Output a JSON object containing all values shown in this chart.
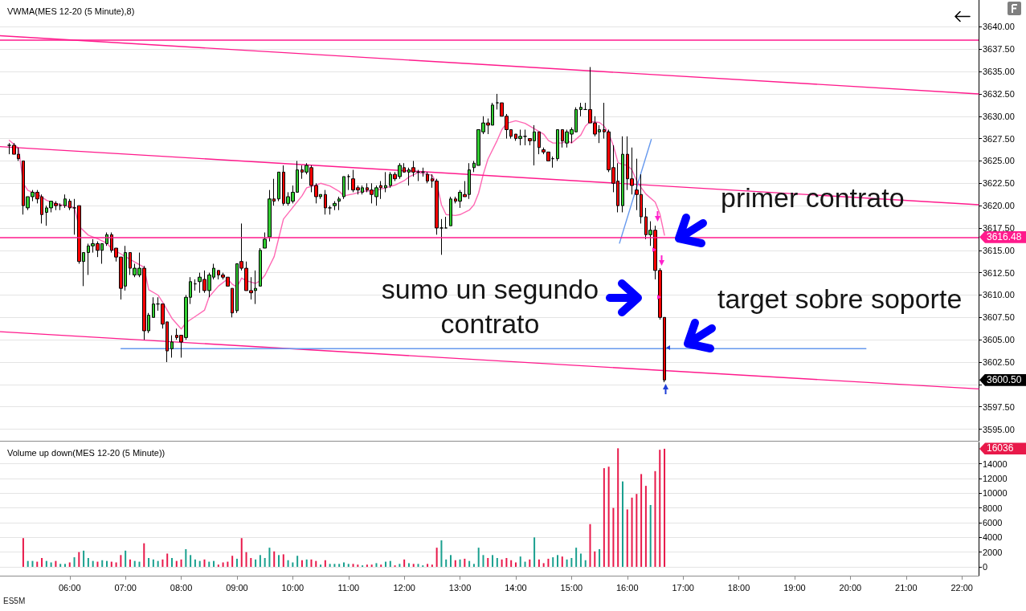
{
  "chart_data": [
    {
      "type": "candlestick",
      "title": "VWMA(MES 12-20 (5 Minute),8)",
      "series": [
        {
          "type": "candlestick",
          "x": [
            4.9167,
            5,
            5.0833,
            5.1667,
            5.25,
            5.3333,
            5.4167,
            5.5,
            5.5833,
            5.6667,
            5.75,
            5.8333,
            5.9167,
            6,
            6.0833,
            6.1667,
            6.25,
            6.3333,
            6.4167,
            6.5,
            6.5833,
            6.6667,
            6.75,
            6.8333,
            6.9167,
            7,
            7.0833,
            7.1667,
            7.25,
            7.3333,
            7.4167,
            7.5,
            7.5833,
            7.6667,
            7.75,
            7.8333,
            7.9167,
            8,
            8.0833,
            8.1667,
            8.25,
            8.3333,
            8.4167,
            8.5,
            8.5833,
            8.6667,
            8.75,
            8.8333,
            8.9167,
            9,
            9.0833,
            9.1667,
            9.25,
            9.3333,
            9.4167,
            9.5,
            9.5833,
            9.6667,
            9.75,
            9.8333,
            9.9167,
            10,
            10.0833,
            10.1667,
            10.25,
            10.3333,
            10.4167,
            10.5,
            10.5833,
            10.6667,
            10.75,
            10.8333,
            10.9167,
            11,
            11.0833,
            11.1667,
            11.25,
            11.3333,
            11.4167,
            11.5,
            11.5833,
            11.6667,
            11.75,
            11.8333,
            11.9167,
            12,
            12.0833,
            12.1667,
            12.25,
            12.3333,
            12.4167,
            12.5,
            12.5833,
            12.6667,
            12.75,
            12.8333,
            12.9167,
            13,
            13.0833,
            13.1667,
            13.25,
            13.3333,
            13.4167,
            13.5,
            13.5833,
            13.6667,
            13.75,
            13.8333,
            13.9167,
            14,
            14.0833,
            14.1667,
            14.25,
            14.3333,
            14.4167,
            14.5,
            14.5833,
            14.6667,
            14.75,
            14.8333,
            14.9167,
            15,
            15.0833,
            15.1667,
            15.25,
            15.3333,
            15.4167,
            15.5,
            15.5833,
            15.6667,
            15.75,
            15.8333,
            15.9167,
            16,
            16.0833,
            16.1667,
            16.25,
            16.3333,
            16.4167,
            16.5,
            16.5833,
            16.6667
          ],
          "ohlc": [
            [
              3626.75,
              3627,
              3625.75,
              3626.75
            ],
            [
              3626.75,
              3627,
              3625.75,
              3625.75
            ],
            [
              3625.75,
              3626.5,
              3625,
              3625.25
            ],
            [
              3625,
              3625,
              3619,
              3620
            ],
            [
              3619.75,
              3621,
              3619.5,
              3621
            ],
            [
              3621,
              3621.75,
              3620.5,
              3621.5
            ],
            [
              3621.5,
              3621.75,
              3620.25,
              3620.75
            ],
            [
              3621,
              3621.25,
              3618,
              3619
            ],
            [
              3619.25,
              3620,
              3617.75,
              3619.75
            ],
            [
              3619.75,
              3620.5,
              3619.25,
              3620.5
            ],
            [
              3620.25,
              3620.5,
              3619.5,
              3620
            ],
            [
              3620,
              3620.25,
              3619.5,
              3620
            ],
            [
              3620,
              3621.25,
              3619.75,
              3620.75
            ],
            [
              3620.5,
              3620.75,
              3619.5,
              3619.75
            ],
            [
              3619.75,
              3620.75,
              3616.75,
              3619.75
            ],
            [
              3620,
              3620,
              3613.5,
              3613.75
            ],
            [
              3613.75,
              3614.75,
              3611,
              3614.75
            ],
            [
              3614.75,
              3615.75,
              3612.25,
              3615.5
            ],
            [
              3615.5,
              3616.25,
              3614.75,
              3615.75
            ],
            [
              3615.75,
              3616,
              3614.25,
              3615
            ],
            [
              3615,
              3615.75,
              3613.5,
              3615.75
            ],
            [
              3615.75,
              3617,
              3615.5,
              3616.75
            ],
            [
              3616.75,
              3617,
              3614.75,
              3615
            ],
            [
              3615.25,
              3615.25,
              3613.75,
              3614.25
            ],
            [
              3614.25,
              3614.25,
              3609.5,
              3610.75
            ],
            [
              3611,
              3615.5,
              3610.5,
              3614.75
            ],
            [
              3614.75,
              3614.75,
              3612.25,
              3613
            ],
            [
              3612.25,
              3613.5,
              3612,
              3613
            ],
            [
              3612.25,
              3614.75,
              3612,
              3613
            ],
            [
              3613,
              3613.25,
              3605,
              3606
            ],
            [
              3606,
              3608,
              3605.75,
              3607.75
            ],
            [
              3607.5,
              3609.75,
              3607.5,
              3609
            ],
            [
              3609,
              3609.75,
              3608.25,
              3609
            ],
            [
              3609,
              3609,
              3606.25,
              3606.75
            ],
            [
              3607,
              3607,
              3602.5,
              3603.75
            ],
            [
              3604,
              3605.5,
              3603,
              3604.75
            ],
            [
              3605.5,
              3606.25,
              3605,
              3605.25
            ],
            [
              3605.5,
              3605.5,
              3603,
              3604.75
            ],
            [
              3605.25,
              3610,
              3605,
              3609.75
            ],
            [
              3609.75,
              3612,
              3609,
              3611.5
            ],
            [
              3611.25,
              3611.75,
              3610.5,
              3611.25
            ],
            [
              3611.5,
              3612.5,
              3610.25,
              3612
            ],
            [
              3611.75,
              3612.75,
              3610.25,
              3610.5
            ],
            [
              3610.5,
              3612.5,
              3609.75,
              3612.25
            ],
            [
              3612,
              3613.5,
              3611.75,
              3613
            ],
            [
              3612.75,
              3612.75,
              3611.75,
              3612.25
            ],
            [
              3612.25,
              3612.5,
              3611.75,
              3612
            ],
            [
              3612,
              3612,
              3611,
              3611
            ],
            [
              3610.75,
              3610.75,
              3607.5,
              3608
            ],
            [
              3608.25,
              3613.5,
              3608,
              3613.5
            ],
            [
              3613.75,
              3618,
              3612.75,
              3613
            ],
            [
              3613,
              3613.75,
              3610.5,
              3610.5
            ],
            [
              3610.5,
              3612,
              3609.5,
              3610.25
            ],
            [
              3610.5,
              3612.75,
              3609,
              3610.75
            ],
            [
              3611,
              3615.25,
              3611,
              3615
            ],
            [
              3615.25,
              3617,
              3615.25,
              3616.25
            ],
            [
              3616.5,
              3621.75,
              3616,
              3620.75
            ],
            [
              3620.75,
              3623,
              3620,
              3620.5
            ],
            [
              3620.75,
              3623.75,
              3620.5,
              3623.75
            ],
            [
              3623.75,
              3624.5,
              3620,
              3620.25
            ],
            [
              3620.25,
              3621.5,
              3620,
              3621
            ],
            [
              3620.5,
              3622.25,
              3620.25,
              3621.5
            ],
            [
              3621.5,
              3625,
              3621.5,
              3624
            ],
            [
              3624,
              3624.5,
              3623,
              3623.75
            ],
            [
              3623.75,
              3624.75,
              3623.5,
              3624.5
            ],
            [
              3624.25,
              3624.5,
              3621.5,
              3622.25
            ],
            [
              3622.25,
              3622.5,
              3620.25,
              3621
            ],
            [
              3621,
              3621.25,
              3620.75,
              3621.25
            ],
            [
              3621.25,
              3621.75,
              3619,
              3619.75
            ],
            [
              3619.75,
              3620,
              3619,
              3619.75
            ],
            [
              3620,
              3620.5,
              3619.5,
              3620.25
            ],
            [
              3620.5,
              3621,
              3619.5,
              3620.75
            ],
            [
              3621,
              3623.25,
              3620.75,
              3623.25
            ],
            [
              3623.25,
              3623.5,
              3621.75,
              3623.25
            ],
            [
              3623,
              3624,
              3621.5,
              3621.75
            ],
            [
              3622,
              3622.25,
              3621.25,
              3621.75
            ],
            [
              3621.5,
              3622.25,
              3621.25,
              3622
            ],
            [
              3622,
              3622.5,
              3621.5,
              3621.75
            ],
            [
              3621.75,
              3622.5,
              3620.25,
              3621.25
            ],
            [
              3621,
              3622.25,
              3620,
              3622
            ],
            [
              3622.25,
              3622.75,
              3620.75,
              3622
            ],
            [
              3622,
              3623.75,
              3621.5,
              3622.25
            ],
            [
              3622.25,
              3623.75,
              3622,
              3623.5
            ],
            [
              3623.5,
              3623.75,
              3622.75,
              3623
            ],
            [
              3623.25,
              3624.75,
              3623,
              3624.5
            ],
            [
              3624.25,
              3624.75,
              3623.75,
              3623.75
            ],
            [
              3623.75,
              3624.25,
              3622.25,
              3624
            ],
            [
              3624.25,
              3625,
              3623.25,
              3623.75
            ],
            [
              3623.75,
              3624,
              3622.75,
              3623.75
            ],
            [
              3623.75,
              3624.25,
              3623.25,
              3623.75
            ],
            [
              3623.5,
              3623.75,
              3622.5,
              3622.75
            ],
            [
              3623,
              3623.5,
              3622,
              3622.75
            ],
            [
              3622.75,
              3623,
              3616.75,
              3617.5
            ],
            [
              3617.5,
              3618.5,
              3614.5,
              3617.5
            ],
            [
              3617.5,
              3618.75,
              3617.5,
              3617.5
            ],
            [
              3617.75,
              3621,
              3617.75,
              3620.75
            ],
            [
              3620.75,
              3621,
              3620.25,
              3620.5
            ],
            [
              3620.5,
              3621.75,
              3619.75,
              3621.5
            ],
            [
              3621.25,
              3622.75,
              3621,
              3621
            ],
            [
              3621.25,
              3624.75,
              3620.75,
              3624
            ],
            [
              3624.25,
              3625,
              3623.75,
              3624.75
            ],
            [
              3624.5,
              3628.5,
              3624.5,
              3628.5
            ],
            [
              3628.25,
              3630,
              3628,
              3629.25
            ],
            [
              3629.25,
              3629.75,
              3628,
              3629
            ],
            [
              3629,
              3631.5,
              3629,
              3631.25
            ],
            [
              3631.5,
              3632.5,
              3630.75,
              3631.5
            ],
            [
              3631.5,
              3631.5,
              3630,
              3630
            ],
            [
              3630,
              3630.25,
              3627.5,
              3628.5
            ],
            [
              3628.5,
              3628.5,
              3627.5,
              3627.75
            ],
            [
              3628,
              3628,
              3627.25,
              3627.5
            ],
            [
              3627.5,
              3628.5,
              3626.75,
              3627.75
            ],
            [
              3627.75,
              3628.5,
              3626.75,
              3627.75
            ],
            [
              3627.5,
              3627.5,
              3626.75,
              3627.25
            ],
            [
              3627.25,
              3629,
              3624.5,
              3628.25
            ],
            [
              3628.25,
              3628.25,
              3625.75,
              3626.5
            ],
            [
              3626.25,
              3626.5,
              3625.75,
              3626
            ],
            [
              3626,
              3626,
              3625,
              3625
            ],
            [
              3625.25,
              3625.5,
              3624.25,
              3625.25
            ],
            [
              3625.25,
              3628.5,
              3625,
              3628.5
            ],
            [
              3628.5,
              3628.5,
              3626.5,
              3627.25
            ],
            [
              3627,
              3628.5,
              3626.5,
              3628.25
            ],
            [
              3628,
              3628.75,
              3627,
              3628.5
            ],
            [
              3628.25,
              3631,
              3628.25,
              3630.75
            ],
            [
              3630.75,
              3631.5,
              3630,
              3631
            ],
            [
              3630.75,
              3631.5,
              3630.75,
              3630.75
            ],
            [
              3630.75,
              3635.5,
              3629.25,
              3629.25
            ],
            [
              3629.25,
              3630,
              3627.75,
              3628
            ],
            [
              3628.25,
              3629,
              3627,
              3628.5
            ],
            [
              3628.5,
              3631.5,
              3627.5,
              3628.25
            ],
            [
              3628.25,
              3628.5,
              3623.75,
              3624
            ],
            [
              3624.25,
              3626.75,
              3621.5,
              3622.5
            ],
            [
              3622.75,
              3624.75,
              3619.25,
              3620
            ],
            [
              3620,
              3627.75,
              3619.25,
              3625.75
            ],
            [
              3625.75,
              3627.75,
              3621.75,
              3623
            ],
            [
              3623,
              3626.5,
              3621.25,
              3622.25
            ],
            [
              3621.75,
              3625.25,
              3619.5,
              3621.25
            ],
            [
              3621.25,
              3623.5,
              3618,
              3618.75
            ],
            [
              3618.75,
              3619.75,
              3616.25,
              3616.75
            ],
            [
              3616.75,
              3618.25,
              3615.5,
              3617.25
            ],
            [
              3617.25,
              3617.75,
              3611.75,
              3612.75
            ],
            [
              3612.75,
              3613,
              3607.25,
              3607.5
            ],
            [
              3607.5,
              3607.5,
              3600.25,
              3600.5
            ]
          ],
          "colors": [
            "#000000",
            "#ff0000",
            "#ff0000",
            "#ff0000",
            "#32cd32",
            "#32cd32",
            "#ff0000",
            "#ff0000",
            "#32cd32",
            "#32cd32",
            "#ff0000",
            "#000000",
            "#32cd32",
            "#ff0000",
            "#000000",
            "#ff0000",
            "#32cd32",
            "#32cd32",
            "#32cd32",
            "#ff0000",
            "#32cd32",
            "#32cd32",
            "#ff0000",
            "#ff0000",
            "#ff0000",
            "#32cd32",
            "#ff0000",
            "#32cd32",
            "#32cd32",
            "#ff0000",
            "#32cd32",
            "#32cd32",
            "#000000",
            "#ff0000",
            "#ff0000",
            "#32cd32",
            "#ff0000",
            "#ff0000",
            "#32cd32",
            "#32cd32",
            "#000000",
            "#32cd32",
            "#ff0000",
            "#32cd32",
            "#32cd32",
            "#ff0000",
            "#ff0000",
            "#ff0000",
            "#ff0000",
            "#32cd32",
            "#ff0000",
            "#ff0000",
            "#ff0000",
            "#32cd32",
            "#32cd32",
            "#32cd32",
            "#32cd32",
            "#ff0000",
            "#32cd32",
            "#ff0000",
            "#32cd32",
            "#32cd32",
            "#32cd32",
            "#ff0000",
            "#32cd32",
            "#ff0000",
            "#ff0000",
            "#32cd32",
            "#ff0000",
            "#000000",
            "#32cd32",
            "#32cd32",
            "#32cd32",
            "#000000",
            "#ff0000",
            "#ff0000",
            "#32cd32",
            "#ff0000",
            "#ff0000",
            "#32cd32",
            "#ff0000",
            "#32cd32",
            "#32cd32",
            "#ff0000",
            "#32cd32",
            "#ff0000",
            "#32cd32",
            "#ff0000",
            "#000000",
            "#000000",
            "#ff0000",
            "#ff0000",
            "#ff0000",
            "#000000",
            "#000000",
            "#32cd32",
            "#ff0000",
            "#32cd32",
            "#ff0000",
            "#32cd32",
            "#32cd32",
            "#32cd32",
            "#32cd32",
            "#ff0000",
            "#32cd32",
            "#000000",
            "#ff0000",
            "#ff0000",
            "#ff0000",
            "#ff0000",
            "#32cd32",
            "#000000",
            "#ff0000",
            "#32cd32",
            "#ff0000",
            "#ff0000",
            "#ff0000",
            "#000000",
            "#32cd32",
            "#ff0000",
            "#32cd32",
            "#32cd32",
            "#32cd32",
            "#32cd32",
            "#000000",
            "#ff0000",
            "#ff0000",
            "#32cd32",
            "#ff0000",
            "#ff0000",
            "#ff0000",
            "#ff0000",
            "#32cd32",
            "#ff0000",
            "#ff0000",
            "#ff0000",
            "#ff0000",
            "#ff0000",
            "#32cd32",
            "#ff0000",
            "#ff0000",
            "#ff0000"
          ]
        },
        {
          "type": "line",
          "color": "#ff69b4",
          "x": [
            4.9167,
            5.0833,
            5.1667,
            5.25,
            5.4167,
            5.5833,
            5.6667,
            5.8333,
            6,
            6.0833,
            6.1667,
            6.3333,
            6.5,
            6.6667,
            6.75,
            6.9167,
            7,
            7.1667,
            7.3333,
            7.4167,
            7.5833,
            7.6667,
            7.8333,
            8,
            8.0833,
            8.25,
            8.4167,
            8.5,
            8.6667,
            8.8333,
            8.9167,
            9,
            9.0833,
            9.1667,
            9.3333,
            9.4167,
            9.5,
            9.6667,
            9.75,
            9.8333,
            10,
            10.1667,
            10.25,
            10.4167,
            10.5,
            10.6667,
            10.8333,
            10.9167,
            11.0833,
            11.25,
            11.5,
            11.6667,
            11.8333,
            12,
            12.0833,
            12.25,
            12.4167,
            12.5,
            12.5833,
            12.6667,
            12.75,
            12.9167,
            13,
            13.1667,
            13.25,
            13.3333,
            13.4167,
            13.5,
            13.6667,
            13.75,
            13.8333,
            14,
            14.1667,
            14.3333,
            14.5,
            14.5833,
            14.6667,
            14.8333,
            14.9167,
            15,
            15.1667,
            15.25,
            15.3333,
            15.5,
            15.5833,
            15.6667,
            15.75,
            15.8333,
            15.9167,
            16,
            16.0833,
            16.1667,
            16.25,
            16.3333,
            16.5,
            16.5833,
            16.6667
          ],
          "values": [
            3627.3,
            3626.4,
            3622.5,
            3621.7,
            3621.3,
            3620.6,
            3620.4,
            3620.1,
            3619.9,
            3619.8,
            3617.7,
            3616.7,
            3616.3,
            3615.8,
            3615.2,
            3614.6,
            3614.3,
            3613.7,
            3613.1,
            3610.6,
            3610.0,
            3609.2,
            3607.4,
            3606.2,
            3606.9,
            3607.6,
            3608.3,
            3609.8,
            3611.0,
            3611.8,
            3611.2,
            3610.9,
            3611.9,
            3611.6,
            3611.3,
            3611.6,
            3612.2,
            3614.3,
            3616.4,
            3618.5,
            3619.8,
            3621.1,
            3622.0,
            3622.3,
            3622.5,
            3622.2,
            3621.6,
            3621.1,
            3621.3,
            3621.6,
            3621.7,
            3622.0,
            3622.3,
            3622.8,
            3623.2,
            3623.7,
            3623.5,
            3623.4,
            3622.5,
            3620.1,
            3619.0,
            3618.9,
            3619.0,
            3619.5,
            3620.1,
            3621.4,
            3623.5,
            3625.2,
            3627.3,
            3628.5,
            3629.2,
            3629.5,
            3629.2,
            3628.6,
            3628.0,
            3627.3,
            3627.0,
            3627.0,
            3627.3,
            3627.0,
            3627.9,
            3628.9,
            3629.4,
            3629.3,
            3628.9,
            3628.1,
            3626.7,
            3624.8,
            3624.6,
            3624.5,
            3624.0,
            3622.8,
            3622.0,
            3621.3,
            3620.4,
            3619.1,
            3616.7
          ]
        },
        {
          "type": "line",
          "color": "#ff1a8c",
          "x": [
            4.75,
            22.3
          ],
          "values": [
            3639,
            3632.5
          ]
        },
        {
          "type": "line",
          "color": "#ff1a8c",
          "x": [
            4.75,
            22.3
          ],
          "values": [
            3626.6,
            3620.1
          ]
        },
        {
          "type": "line",
          "color": "#ff1a8c",
          "x": [
            4.75,
            22.3
          ],
          "values": [
            3605.9,
            3599.5
          ]
        },
        {
          "type": "line",
          "color": "#6699ee",
          "x": [
            6.92,
            20.28
          ],
          "values": [
            3604,
            3604
          ]
        },
        {
          "type": "line",
          "color": "#6699ee",
          "x": [
            15.86,
            16.43
          ],
          "values": [
            3615.8,
            3627.4
          ]
        }
      ],
      "xlim": [
        4.75,
        22.3
      ],
      "ylim": [
        3593.7,
        3643
      ],
      "yticks": [
        {
          "value": 3595,
          "label": "3595.00"
        },
        {
          "value": 3597.5,
          "label": "3597.50"
        },
        {
          "value": 3600,
          "label": null
        },
        {
          "value": 3602.5,
          "label": "3602.50"
        },
        {
          "value": 3605,
          "label": "3605.00"
        },
        {
          "value": 3607.5,
          "label": "3607.50"
        },
        {
          "value": 3610,
          "label": "3610.00"
        },
        {
          "value": 3612.5,
          "label": "3612.50"
        },
        {
          "value": 3615,
          "label": "3615.00"
        },
        {
          "value": 3617.5,
          "label": "3617.50"
        },
        {
          "value": 3620,
          "label": "3620.00"
        },
        {
          "value": 3622.5,
          "label": "3622.50"
        },
        {
          "value": 3625,
          "label": "3625.00"
        },
        {
          "value": 3627.5,
          "label": "3627.50"
        },
        {
          "value": 3630,
          "label": "3630.00"
        },
        {
          "value": 3632.5,
          "label": "3632.50"
        },
        {
          "value": 3635,
          "label": "3635.00"
        },
        {
          "value": 3637.5,
          "label": "3637.50"
        },
        {
          "value": 3640,
          "label": "3640.00"
        }
      ],
      "tick_labels": "y",
      "grid": "y",
      "marker": "none",
      "ref_lines": [
        {
          "axis": "y",
          "value": 3638.5,
          "color": "#ff1a8c"
        },
        {
          "axis": "y",
          "value": 3616.48,
          "label": "3616.48",
          "color": "#ff1a8c"
        }
      ],
      "annotations": [
        "3600.50",
        "primer contrato",
        "sumo un segundo contrato",
        "target sobre soporte"
      ]
    },
    {
      "type": "bar",
      "title": "Volume up down(MES 12-20 (5 Minute))",
      "x": [
        5.1667,
        5.25,
        5.3333,
        5.4167,
        5.5,
        5.5833,
        5.6667,
        5.75,
        5.8333,
        5.9167,
        6,
        6.0833,
        6.1667,
        6.25,
        6.3333,
        6.4167,
        6.5,
        6.5833,
        6.6667,
        6.75,
        6.8333,
        6.9167,
        7,
        7.0833,
        7.1667,
        7.25,
        7.3333,
        7.4167,
        7.5,
        7.5833,
        7.6667,
        7.75,
        7.8333,
        7.9167,
        8,
        8.0833,
        8.1667,
        8.25,
        8.3333,
        8.4167,
        8.5,
        8.5833,
        8.6667,
        8.75,
        8.8333,
        8.9167,
        9,
        9.0833,
        9.1667,
        9.25,
        9.3333,
        9.4167,
        9.5,
        9.5833,
        9.6667,
        9.75,
        9.8333,
        9.9167,
        10,
        10.0833,
        10.1667,
        10.25,
        10.3333,
        10.4167,
        10.5,
        10.5833,
        10.6667,
        10.75,
        10.8333,
        10.9167,
        11,
        11.0833,
        11.1667,
        11.25,
        11.3333,
        11.4167,
        11.5,
        11.5833,
        11.6667,
        11.75,
        11.8333,
        11.9167,
        12,
        12.0833,
        12.1667,
        12.25,
        12.3333,
        12.4167,
        12.5,
        12.5833,
        12.6667,
        12.75,
        12.8333,
        12.9167,
        13,
        13.0833,
        13.1667,
        13.25,
        13.3333,
        13.4167,
        13.5,
        13.5833,
        13.6667,
        13.75,
        13.8333,
        13.9167,
        14,
        14.0833,
        14.1667,
        14.25,
        14.3333,
        14.4167,
        14.5,
        14.5833,
        14.6667,
        14.75,
        14.8333,
        14.9167,
        15,
        15.0833,
        15.1667,
        15.25,
        15.3333,
        15.4167,
        15.5,
        15.5833,
        15.6667,
        15.75,
        15.8333,
        15.9167,
        16,
        16.0833,
        16.1667,
        16.25,
        16.3333,
        16.4167,
        16.5,
        16.5833,
        16.6667
      ],
      "values": [
        3900,
        800,
        800,
        700,
        1200,
        800,
        600,
        800,
        400,
        400,
        600,
        1300,
        2000,
        2200,
        1200,
        800,
        700,
        900,
        800,
        700,
        600,
        1600,
        2200,
        1000,
        800,
        700,
        3200,
        1200,
        1000,
        800,
        1000,
        1800,
        1200,
        800,
        1000,
        2400,
        1600,
        1000,
        800,
        1000,
        700,
        800,
        300,
        600,
        700,
        1500,
        1100,
        3900,
        2000,
        1200,
        1000,
        1600,
        1200,
        2600,
        2100,
        1600,
        1700,
        900,
        600,
        1500,
        900,
        1000,
        1000,
        800,
        300,
        900,
        400,
        400,
        400,
        600,
        400,
        400,
        300,
        200,
        300,
        300,
        500,
        300,
        700,
        800,
        200,
        400,
        1000,
        500,
        400,
        400,
        200,
        400,
        300,
        2600,
        3600,
        1000,
        1600,
        900,
        1000,
        1100,
        800,
        400,
        2600,
        1600,
        1200,
        1600,
        1200,
        1000,
        1200,
        900,
        600,
        1400,
        700,
        1000,
        4000,
        1000,
        500,
        1100,
        1300,
        1600,
        1400,
        1000,
        1200,
        2600,
        1800,
        900,
        5800,
        2100,
        2400,
        13400,
        13600,
        8000,
        16100,
        11600,
        7800,
        9400,
        9900,
        12600,
        11000,
        8400,
        13000,
        15900,
        16036
      ],
      "colors": [
        "#e8194a",
        "#1aa08f",
        "#1aa08f",
        "#e8194a",
        "#e8194a",
        "#1aa08f",
        "#1aa08f",
        "#e8194a",
        "#1aa08f",
        "#1aa08f",
        "#e8194a",
        "#1aa08f",
        "#e8194a",
        "#1aa08f",
        "#1aa08f",
        "#1aa08f",
        "#e8194a",
        "#1aa08f",
        "#1aa08f",
        "#e8194a",
        "#e8194a",
        "#e8194a",
        "#1aa08f",
        "#e8194a",
        "#1aa08f",
        "#1aa08f",
        "#e8194a",
        "#1aa08f",
        "#1aa08f",
        "#1aa08f",
        "#e8194a",
        "#e8194a",
        "#1aa08f",
        "#e8194a",
        "#e8194a",
        "#1aa08f",
        "#1aa08f",
        "#1aa08f",
        "#1aa08f",
        "#e8194a",
        "#1aa08f",
        "#1aa08f",
        "#e8194a",
        "#e8194a",
        "#e8194a",
        "#e8194a",
        "#1aa08f",
        "#e8194a",
        "#e8194a",
        "#e8194a",
        "#1aa08f",
        "#1aa08f",
        "#1aa08f",
        "#1aa08f",
        "#e8194a",
        "#1aa08f",
        "#e8194a",
        "#1aa08f",
        "#1aa08f",
        "#1aa08f",
        "#e8194a",
        "#1aa08f",
        "#e8194a",
        "#e8194a",
        "#1aa08f",
        "#e8194a",
        "#1aa08f",
        "#1aa08f",
        "#1aa08f",
        "#1aa08f",
        "#1aa08f",
        "#e8194a",
        "#e8194a",
        "#1aa08f",
        "#e8194a",
        "#e8194a",
        "#1aa08f",
        "#e8194a",
        "#1aa08f",
        "#1aa08f",
        "#e8194a",
        "#1aa08f",
        "#e8194a",
        "#1aa08f",
        "#e8194a",
        "#1aa08f",
        "#1aa08f",
        "#e8194a",
        "#e8194a",
        "#e8194a",
        "#1aa08f",
        "#1aa08f",
        "#1aa08f",
        "#e8194a",
        "#1aa08f",
        "#e8194a",
        "#1aa08f",
        "#1aa08f",
        "#1aa08f",
        "#1aa08f",
        "#e8194a",
        "#1aa08f",
        "#1aa08f",
        "#e8194a",
        "#e8194a",
        "#e8194a",
        "#e8194a",
        "#1aa08f",
        "#1aa08f",
        "#e8194a",
        "#1aa08f",
        "#e8194a",
        "#e8194a",
        "#e8194a",
        "#1aa08f",
        "#1aa08f",
        "#e8194a",
        "#1aa08f",
        "#1aa08f",
        "#1aa08f",
        "#1aa08f",
        "#1aa08f",
        "#e8194a",
        "#e8194a",
        "#1aa08f",
        "#e8194a",
        "#e8194a",
        "#e8194a",
        "#e8194a",
        "#1aa08f",
        "#e8194a",
        "#e8194a",
        "#e8194a",
        "#e8194a",
        "#e8194a",
        "#1aa08f",
        "#e8194a",
        "#e8194a",
        "#e8194a"
      ],
      "xlim": [
        4.75,
        22.3
      ],
      "xticks": [
        {
          "value": 6,
          "label": "06:00"
        },
        {
          "value": 7,
          "label": "07:00"
        },
        {
          "value": 8,
          "label": "08:00"
        },
        {
          "value": 9,
          "label": "09:00"
        },
        {
          "value": 10,
          "label": "10:00"
        },
        {
          "value": 11,
          "label": "11:00"
        },
        {
          "value": 12,
          "label": "12:00"
        },
        {
          "value": 13,
          "label": "13:00"
        },
        {
          "value": 14,
          "label": "14:00"
        },
        {
          "value": 15,
          "label": "15:00"
        },
        {
          "value": 16,
          "label": "16:00"
        },
        {
          "value": 17,
          "label": "17:00"
        },
        {
          "value": 18,
          "label": "18:00"
        },
        {
          "value": 19,
          "label": "19:00"
        },
        {
          "value": 20,
          "label": "20:00"
        },
        {
          "value": 21,
          "label": "21:00"
        },
        {
          "value": 22,
          "label": "22:00"
        }
      ],
      "ylim": [
        -1200,
        16900
      ],
      "yticks": [
        0,
        2000,
        4000,
        6000,
        8000,
        10000,
        12000,
        14000
      ],
      "grid": "y",
      "annotations": [
        "16036",
        "ES5M"
      ]
    }
  ]
}
